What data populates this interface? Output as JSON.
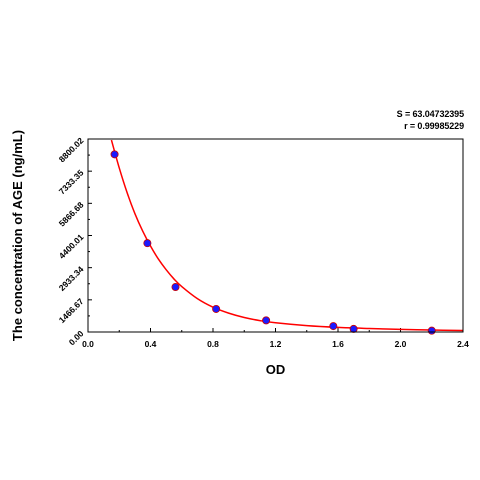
{
  "stats": {
    "s_label": "S = 63.04732395",
    "r_label": "r = 0.99985229"
  },
  "chart_data": {
    "type": "scatter",
    "title": "",
    "xlabel": "OD",
    "ylabel": "The concentration of AGE (ng/mL)",
    "xlim": [
      0.0,
      2.4
    ],
    "ylim": [
      0.0,
      8800.02
    ],
    "x_ticks": [
      "0.0",
      "0.4",
      "0.8",
      "1.2",
      "1.6",
      "2.0",
      "2.4"
    ],
    "x_tick_values": [
      0.0,
      0.4,
      0.8,
      1.2,
      1.6,
      2.0,
      2.4
    ],
    "y_ticks": [
      "0.00",
      "1466.67",
      "2933.34",
      "4400.01",
      "5866.68",
      "7333.35",
      "8800.02"
    ],
    "y_tick_values": [
      0.0,
      1466.67,
      2933.34,
      4400.01,
      5866.68,
      7333.35,
      8800.02
    ],
    "grid": false,
    "series": [
      {
        "type": "scatter",
        "color": "#1a1aff",
        "x": [
          0.17,
          0.38,
          0.56,
          0.82,
          1.14,
          1.57,
          1.7,
          2.2
        ],
        "y": [
          8100,
          4050,
          2050,
          1050,
          530,
          270,
          140,
          60
        ]
      },
      {
        "type": "line",
        "color": "#ff0000",
        "x": [
          0.15,
          0.2,
          0.25,
          0.3,
          0.35,
          0.4,
          0.45,
          0.5,
          0.55,
          0.6,
          0.7,
          0.8,
          0.9,
          1.0,
          1.1,
          1.2,
          1.4,
          1.6,
          1.8,
          2.0,
          2.2,
          2.4
        ],
        "y": [
          8750,
          7480,
          6360,
          5400,
          4600,
          3920,
          3330,
          2840,
          2420,
          2070,
          1520,
          1130,
          860,
          660,
          520,
          420,
          290,
          210,
          160,
          120,
          90,
          70
        ]
      }
    ]
  }
}
